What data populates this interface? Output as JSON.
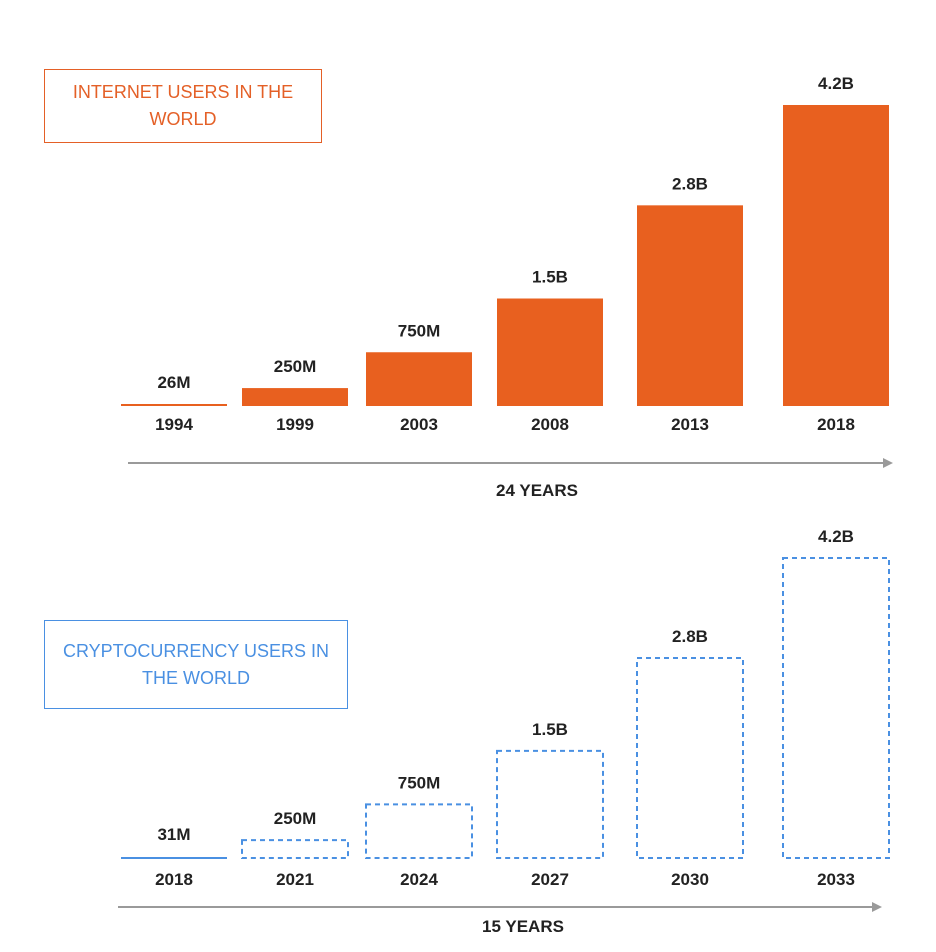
{
  "chart_data": [
    {
      "type": "bar",
      "title": "INTERNET USERS IN THE WORLD",
      "categories": [
        "1994",
        "1999",
        "2003",
        "2008",
        "2013",
        "2018"
      ],
      "values": [
        26000000,
        250000000,
        750000000,
        1500000000,
        2800000000,
        4200000000
      ],
      "value_labels": [
        "26M",
        "250M",
        "750M",
        "1.5B",
        "2.8B",
        "4.2B"
      ],
      "span_label": "24 YEARS",
      "bar_style": "solid",
      "color": "#e8601f",
      "title_color": "#e46027",
      "axis_color": "#9a9a9a"
    },
    {
      "type": "bar",
      "title": "CRYPTOCURRENCY USERS IN THE WORLD",
      "categories": [
        "2018",
        "2021",
        "2024",
        "2027",
        "2030",
        "2033"
      ],
      "values": [
        31000000,
        250000000,
        750000000,
        1500000000,
        2800000000,
        4200000000
      ],
      "value_labels": [
        "31M",
        "250M",
        "750M",
        "1.5B",
        "2.8B",
        "4.2B"
      ],
      "span_label": "15 YEARS",
      "bar_style": "dashed-outline",
      "color": "#4a90e2",
      "title_color": "#4a90e2",
      "axis_color": "#9a9a9a"
    }
  ]
}
